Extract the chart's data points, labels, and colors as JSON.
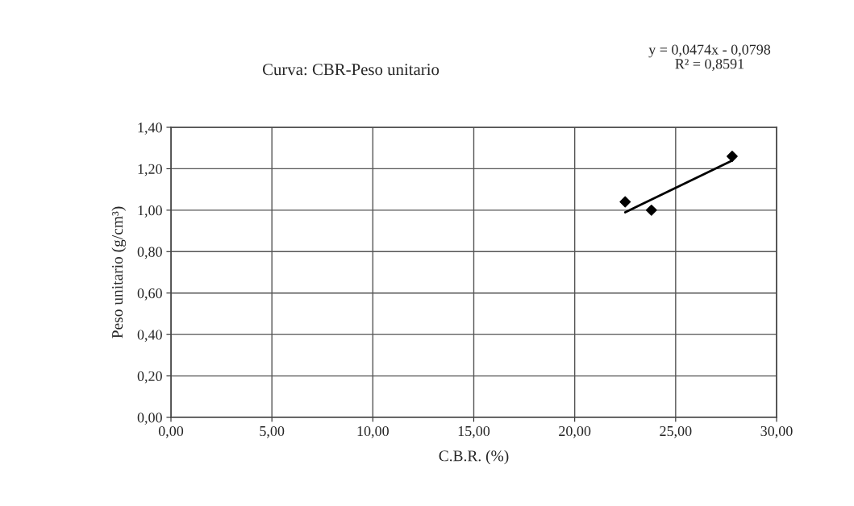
{
  "chart_data": {
    "type": "scatter",
    "title": "Curva: CBR-Peso unitario",
    "xlabel": "C.B.R. (%)",
    "ylabel": "Peso unitario (g/cm³)",
    "annotations": [
      "y = 0,0474x - 0,0798\nR² = 0,8591"
    ],
    "series": [
      {
        "color": "#000000",
        "marker": "diamond",
        "x": [
          22.5,
          23.8,
          27.8
        ],
        "values": [
          1.04,
          1.0,
          1.26
        ]
      },
      {
        "type": "line",
        "color": "#000000",
        "marker": "none",
        "line_style": "solid",
        "x": [
          22.5,
          27.8
        ],
        "values": [
          0.99,
          1.24
        ]
      }
    ],
    "xlim": [
      0,
      30
    ],
    "ylim": [
      0,
      1.4
    ],
    "xticks": [
      {
        "value": 0,
        "label": "0,00"
      },
      {
        "value": 5,
        "label": "5,00"
      },
      {
        "value": 10,
        "label": "10,00"
      },
      {
        "value": 15,
        "label": "15,00"
      },
      {
        "value": 20,
        "label": "20,00"
      },
      {
        "value": 25,
        "label": "25,00"
      },
      {
        "value": 30,
        "label": "30,00"
      }
    ],
    "yticks": [
      {
        "value": 0,
        "label": "0,00"
      },
      {
        "value": 0.2,
        "label": "0,20"
      },
      {
        "value": 0.4,
        "label": "0,40"
      },
      {
        "value": 0.6,
        "label": "0,60"
      },
      {
        "value": 0.8,
        "label": "0,80"
      },
      {
        "value": 1.0,
        "label": "1,00"
      },
      {
        "value": 1.2,
        "label": "1,20"
      },
      {
        "value": 1.4,
        "label": "1,40"
      }
    ],
    "grid": true,
    "legend": false
  }
}
